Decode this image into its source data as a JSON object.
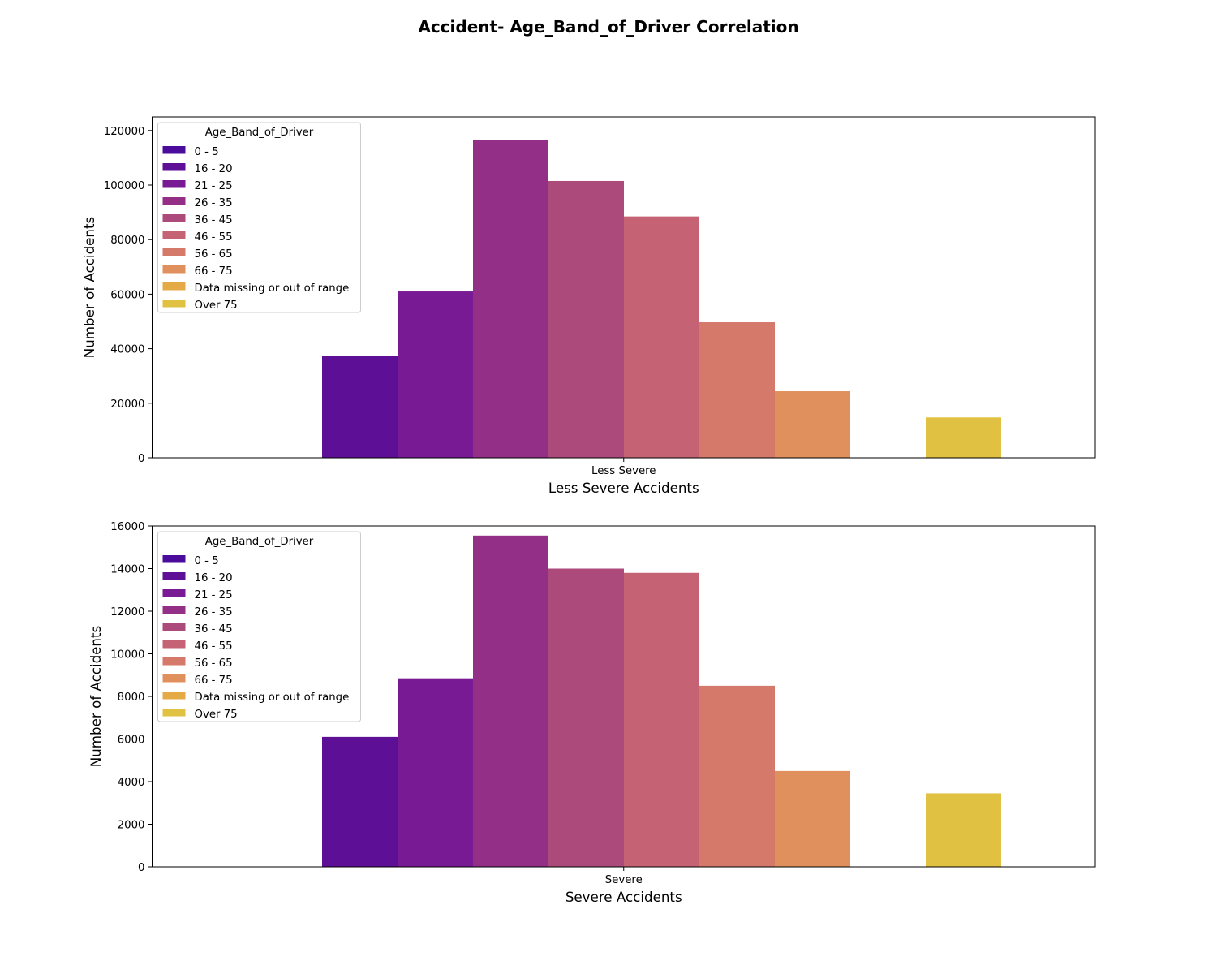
{
  "figure": {
    "title": "Accident- Age_Band_of_Driver Correlation"
  },
  "legend_labels": [
    "0 - 5",
    "16 - 20",
    "21 - 25",
    "26 - 35",
    "36 - 45",
    "46 - 55",
    "56 - 65",
    "66 - 75",
    "Data missing or out of range",
    "Over 75"
  ],
  "palette": [
    "#4b0c9c",
    "#5d0f96",
    "#781a93",
    "#942f88",
    "#ac4a7c",
    "#c56273",
    "#d5796b",
    "#df905c",
    "#e3aa46",
    "#e0c141"
  ],
  "chart_data": [
    {
      "type": "bar",
      "categories": [
        "Less Severe"
      ],
      "xlabel": "Less Severe Accidents",
      "ylabel": "Number of Accidents",
      "ylim": [
        0,
        125000
      ],
      "yticks": [
        0,
        20000,
        40000,
        60000,
        80000,
        100000,
        120000
      ],
      "legend_title": "Age_Band_of_Driver",
      "legend_position": "upper-left",
      "series": [
        {
          "name": "0 - 5",
          "values": [
            0
          ]
        },
        {
          "name": "16 - 20",
          "values": [
            37500
          ]
        },
        {
          "name": "21 - 25",
          "values": [
            61000
          ]
        },
        {
          "name": "26 - 35",
          "values": [
            116500
          ]
        },
        {
          "name": "36 - 45",
          "values": [
            101500
          ]
        },
        {
          "name": "46 - 55",
          "values": [
            88500
          ]
        },
        {
          "name": "56 - 65",
          "values": [
            49700
          ]
        },
        {
          "name": "66 - 75",
          "values": [
            24400
          ]
        },
        {
          "name": "Data missing or out of range",
          "values": [
            0
          ]
        },
        {
          "name": "Over 75",
          "values": [
            14800
          ]
        }
      ]
    },
    {
      "type": "bar",
      "categories": [
        "Severe"
      ],
      "xlabel": "Severe Accidents",
      "ylabel": "Number of Accidents",
      "ylim": [
        0,
        16000
      ],
      "yticks": [
        0,
        2000,
        4000,
        6000,
        8000,
        10000,
        12000,
        14000,
        16000
      ],
      "legend_title": "Age_Band_of_Driver",
      "legend_position": "upper-left",
      "series": [
        {
          "name": "0 - 5",
          "values": [
            0
          ]
        },
        {
          "name": "16 - 20",
          "values": [
            6100
          ]
        },
        {
          "name": "21 - 25",
          "values": [
            8850
          ]
        },
        {
          "name": "26 - 35",
          "values": [
            15550
          ]
        },
        {
          "name": "36 - 45",
          "values": [
            14000
          ]
        },
        {
          "name": "46 - 55",
          "values": [
            13800
          ]
        },
        {
          "name": "56 - 65",
          "values": [
            8500
          ]
        },
        {
          "name": "66 - 75",
          "values": [
            4500
          ]
        },
        {
          "name": "Data missing or out of range",
          "values": [
            0
          ]
        },
        {
          "name": "Over 75",
          "values": [
            3450
          ]
        }
      ]
    }
  ]
}
